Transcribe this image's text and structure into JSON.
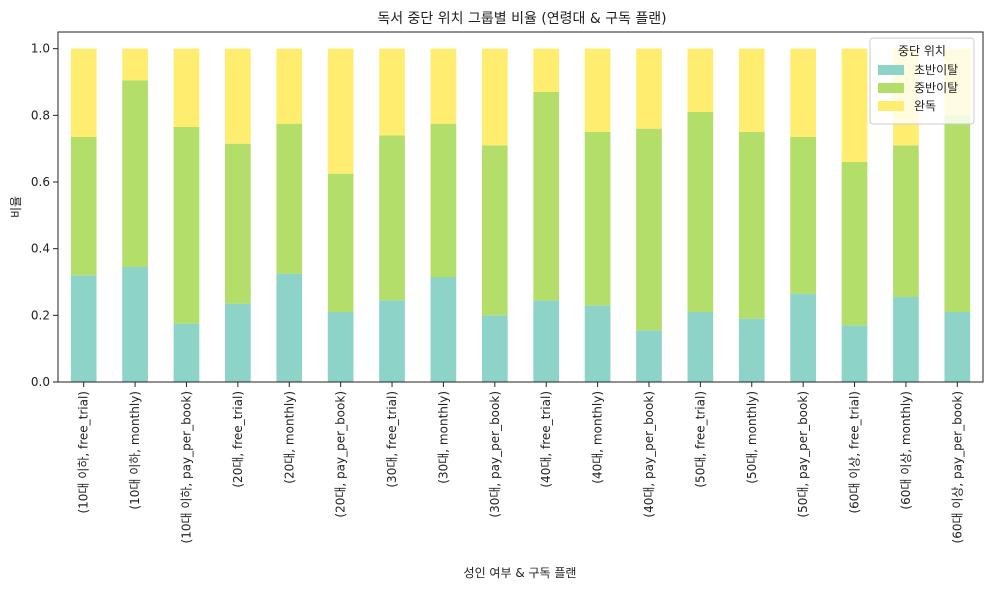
{
  "chart_data": {
    "type": "bar",
    "stacked": true,
    "title": "독서 중단 위치 그룹별 비율 (연령대 & 구독 플랜)",
    "xlabel": "성인 여부 & 구독 플랜",
    "ylabel": "비율",
    "ylim": [
      0,
      1.05
    ],
    "yticks": [
      "0.0",
      "0.2",
      "0.4",
      "0.6",
      "0.8",
      "1.0"
    ],
    "grid": false,
    "legend": {
      "title": "중단 위치",
      "placement": "top-right"
    },
    "categories": [
      "(10대 이하, free_trial)",
      "(10대 이하, monthly)",
      "(10대 이하, pay_per_book)",
      "(20대, free_trial)",
      "(20대, monthly)",
      "(20대, pay_per_book)",
      "(30대, free_trial)",
      "(30대, monthly)",
      "(30대, pay_per_book)",
      "(40대, free_trial)",
      "(40대, monthly)",
      "(40대, pay_per_book)",
      "(50대, free_trial)",
      "(50대, monthly)",
      "(50대, pay_per_book)",
      "(60대 이상, free_trial)",
      "(60대 이상, monthly)",
      "(60대 이상, pay_per_book)"
    ],
    "series": [
      {
        "name": "초반이탈",
        "color": "#8dd3c7",
        "values": [
          0.32,
          0.345,
          0.175,
          0.235,
          0.325,
          0.21,
          0.245,
          0.315,
          0.2,
          0.245,
          0.23,
          0.155,
          0.21,
          0.19,
          0.265,
          0.17,
          0.255,
          0.21
        ]
      },
      {
        "name": "중반이탈",
        "color": "#b3de69",
        "values": [
          0.415,
          0.56,
          0.59,
          0.48,
          0.45,
          0.415,
          0.495,
          0.46,
          0.51,
          0.625,
          0.52,
          0.605,
          0.6,
          0.56,
          0.47,
          0.49,
          0.455,
          0.59
        ]
      },
      {
        "name": "완독",
        "color": "#ffed6f",
        "values": [
          0.265,
          0.095,
          0.235,
          0.285,
          0.225,
          0.375,
          0.26,
          0.225,
          0.29,
          0.13,
          0.25,
          0.24,
          0.19,
          0.25,
          0.265,
          0.34,
          0.29,
          0.2
        ]
      }
    ]
  }
}
